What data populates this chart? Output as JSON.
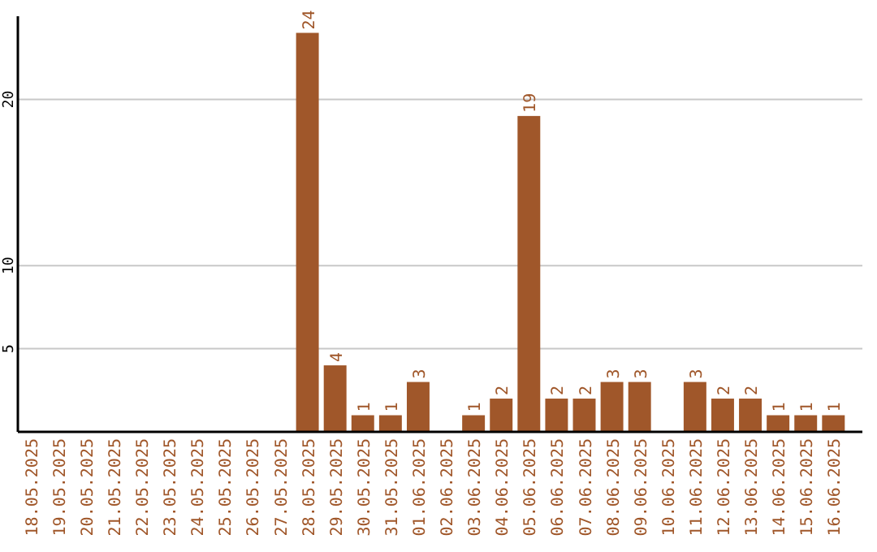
{
  "chart_data": {
    "type": "bar",
    "categories": [
      "18.05.2025",
      "19.05.2025",
      "20.05.2025",
      "21.05.2025",
      "22.05.2025",
      "23.05.2025",
      "24.05.2025",
      "25.05.2025",
      "26.05.2025",
      "27.05.2025",
      "28.05.2025",
      "29.05.2025",
      "30.05.2025",
      "31.05.2025",
      "01.06.2025",
      "02.06.2025",
      "03.06.2025",
      "04.06.2025",
      "05.06.2025",
      "06.06.2025",
      "07.06.2025",
      "08.06.2025",
      "09.06.2025",
      "10.06.2025",
      "11.06.2025",
      "12.06.2025",
      "13.06.2025",
      "14.06.2025",
      "15.06.2025",
      "16.06.2025"
    ],
    "values": [
      0,
      0,
      0,
      0,
      0,
      0,
      0,
      0,
      0,
      0,
      24,
      4,
      1,
      1,
      3,
      0,
      1,
      2,
      19,
      2,
      2,
      3,
      3,
      0,
      3,
      2,
      2,
      1,
      1,
      1
    ],
    "value_labels": [
      null,
      null,
      null,
      null,
      null,
      null,
      null,
      null,
      null,
      null,
      "24",
      "4",
      "1",
      "1",
      "3",
      null,
      "1",
      "2",
      "19",
      "2",
      "2",
      "3",
      "3",
      null,
      "3",
      "2",
      "2",
      "1",
      "1",
      "1"
    ],
    "color": "#a0572a",
    "ylim": [
      0,
      25
    ],
    "yticks": [
      5,
      10,
      20
    ],
    "grid": "y"
  }
}
